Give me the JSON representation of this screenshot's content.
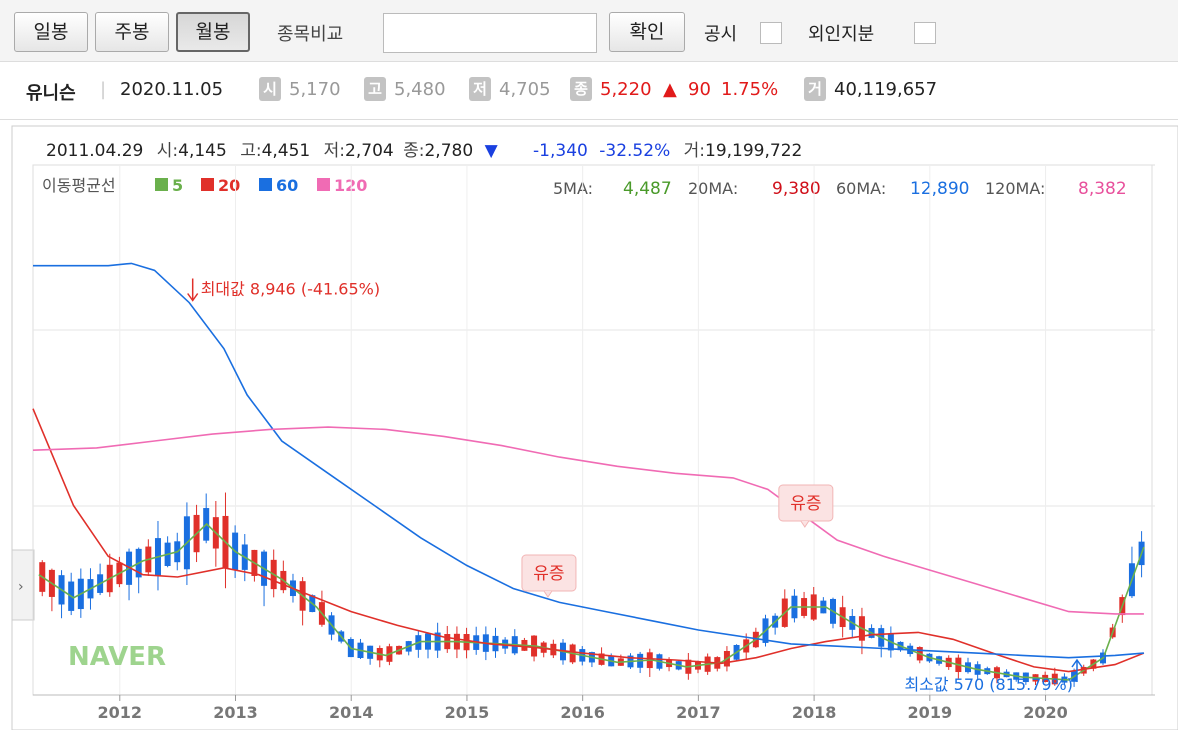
{
  "toolbar": {
    "period_buttons": [
      "일봉",
      "주봉",
      "월봉"
    ],
    "active_period": "월봉",
    "compare_label": "종목비교",
    "compare_value": "",
    "confirm_label": "확인",
    "disclosure_label": "공시",
    "foreign_label": "외인지분"
  },
  "stock": {
    "name": "유니슨",
    "date": "2020.11.05",
    "open_badge": "시",
    "open": "5,170",
    "high_badge": "고",
    "high": "5,480",
    "low_badge": "저",
    "low": "4,705",
    "close_badge": "종",
    "close": "5,220",
    "change_arrow": "▲",
    "change": "90",
    "change_pct": "1.75%",
    "volume_badge": "거",
    "volume": "40,119,657"
  },
  "hover_info": {
    "date": "2011.04.29",
    "open_label": "시:",
    "open": "4,145",
    "high_label": "고:",
    "high": "4,451",
    "low_label": "저:",
    "low": "2,704",
    "close_label": "종:",
    "close": "2,780",
    "arrow": "▼",
    "change": "-1,340",
    "change_pct": "-32.52%",
    "volume_label": "거:",
    "volume": "19,199,722"
  },
  "legend": {
    "title": "이동평균선",
    "items": [
      {
        "label": "5",
        "color": "#6ab04c"
      },
      {
        "label": "20",
        "color": "#e0302a"
      },
      {
        "label": "60",
        "color": "#1a6fe0"
      },
      {
        "label": "120",
        "color": "#f06bb4"
      }
    ],
    "ma_values": [
      {
        "label": "5MA:",
        "value": "4,487",
        "color": "#4a9a2a"
      },
      {
        "label": "20MA:",
        "value": "9,380",
        "color": "#d0101a"
      },
      {
        "label": "60MA:",
        "value": "12,890",
        "color": "#1a6fe0"
      },
      {
        "label": "120MA:",
        "value": "8,382",
        "color": "#e8509c"
      }
    ]
  },
  "watermark": "NAVER",
  "colors": {
    "up": "#e0302a",
    "down": "#1a6fe0"
  },
  "chart_data": {
    "type": "candlestick",
    "x_ticks": [
      "2012",
      "2013",
      "2014",
      "2015",
      "2016",
      "2017",
      "2018",
      "2019",
      "2020"
    ],
    "x_range": [
      2011.25,
      2020.92
    ],
    "y_range_pixel_scale": "linear",
    "series": [
      {
        "name": "5",
        "color": "#6ab04c",
        "points": [
          [
            2011.3,
            3000
          ],
          [
            2011.6,
            2500
          ],
          [
            2011.9,
            2900
          ],
          [
            2012.2,
            3300
          ],
          [
            2012.5,
            3500
          ],
          [
            2012.75,
            4100
          ],
          [
            2013.0,
            3500
          ],
          [
            2013.4,
            2900
          ],
          [
            2013.7,
            2300
          ],
          [
            2014.0,
            1400
          ],
          [
            2014.3,
            1250
          ],
          [
            2014.6,
            1550
          ],
          [
            2014.9,
            1550
          ],
          [
            2015.3,
            1500
          ],
          [
            2015.6,
            1450
          ],
          [
            2015.9,
            1300
          ],
          [
            2016.3,
            1100
          ],
          [
            2016.6,
            1150
          ],
          [
            2016.9,
            1000
          ],
          [
            2017.2,
            1100
          ],
          [
            2017.5,
            1600
          ],
          [
            2017.8,
            2300
          ],
          [
            2018.1,
            2300
          ],
          [
            2018.4,
            1850
          ],
          [
            2018.7,
            1500
          ],
          [
            2019.0,
            1200
          ],
          [
            2019.4,
            950
          ],
          [
            2019.8,
            780
          ],
          [
            2020.2,
            720
          ],
          [
            2020.5,
            1200
          ],
          [
            2020.85,
            3600
          ]
        ]
      },
      {
        "name": "20",
        "color": "#e0302a",
        "points": [
          [
            2011.25,
            6600
          ],
          [
            2011.6,
            4500
          ],
          [
            2011.9,
            3400
          ],
          [
            2012.2,
            3000
          ],
          [
            2012.5,
            2950
          ],
          [
            2012.9,
            3150
          ],
          [
            2013.2,
            3000
          ],
          [
            2013.6,
            2600
          ],
          [
            2014.0,
            2200
          ],
          [
            2014.4,
            1900
          ],
          [
            2014.8,
            1650
          ],
          [
            2015.2,
            1500
          ],
          [
            2015.6,
            1420
          ],
          [
            2016.0,
            1300
          ],
          [
            2016.4,
            1200
          ],
          [
            2016.8,
            1150
          ],
          [
            2017.2,
            1080
          ],
          [
            2017.5,
            1200
          ],
          [
            2017.8,
            1400
          ],
          [
            2018.1,
            1550
          ],
          [
            2018.5,
            1700
          ],
          [
            2018.9,
            1750
          ],
          [
            2019.2,
            1600
          ],
          [
            2019.6,
            1250
          ],
          [
            2019.9,
            1000
          ],
          [
            2020.2,
            900
          ],
          [
            2020.6,
            1050
          ],
          [
            2020.85,
            1300
          ]
        ]
      },
      {
        "name": "60",
        "color": "#1a6fe0",
        "points": [
          [
            2011.25,
            9700
          ],
          [
            2011.6,
            9700
          ],
          [
            2011.9,
            9700
          ],
          [
            2012.1,
            9750
          ],
          [
            2012.3,
            9600
          ],
          [
            2012.6,
            8900
          ],
          [
            2012.9,
            7900
          ],
          [
            2013.1,
            6900
          ],
          [
            2013.4,
            5900
          ],
          [
            2013.8,
            5200
          ],
          [
            2014.2,
            4500
          ],
          [
            2014.6,
            3800
          ],
          [
            2015.0,
            3200
          ],
          [
            2015.4,
            2700
          ],
          [
            2015.8,
            2400
          ],
          [
            2016.2,
            2200
          ],
          [
            2016.6,
            2000
          ],
          [
            2017.0,
            1800
          ],
          [
            2017.4,
            1650
          ],
          [
            2017.8,
            1500
          ],
          [
            2018.2,
            1450
          ],
          [
            2018.6,
            1400
          ],
          [
            2019.0,
            1350
          ],
          [
            2019.4,
            1300
          ],
          [
            2019.8,
            1250
          ],
          [
            2020.2,
            1200
          ],
          [
            2020.6,
            1250
          ],
          [
            2020.85,
            1300
          ]
        ]
      },
      {
        "name": "120",
        "color": "#f06bb4",
        "points": [
          [
            2011.25,
            5700
          ],
          [
            2011.8,
            5750
          ],
          [
            2012.3,
            5900
          ],
          [
            2012.8,
            6050
          ],
          [
            2013.3,
            6150
          ],
          [
            2013.8,
            6200
          ],
          [
            2014.3,
            6150
          ],
          [
            2014.8,
            6000
          ],
          [
            2015.3,
            5800
          ],
          [
            2015.8,
            5550
          ],
          [
            2016.3,
            5350
          ],
          [
            2016.8,
            5200
          ],
          [
            2017.3,
            5100
          ],
          [
            2017.6,
            4850
          ],
          [
            2017.9,
            4300
          ],
          [
            2018.2,
            3750
          ],
          [
            2018.6,
            3400
          ],
          [
            2019.0,
            3100
          ],
          [
            2019.4,
            2800
          ],
          [
            2019.8,
            2500
          ],
          [
            2020.2,
            2200
          ],
          [
            2020.6,
            2150
          ],
          [
            2020.85,
            2150
          ]
        ]
      }
    ],
    "annotations": [
      {
        "text": "최대값 8,946 (-41.65%)",
        "x": 2012.63,
        "y": 8946
      },
      {
        "text": "최소값 570 (815.79%)",
        "x": 2020.22,
        "y": 570
      },
      {
        "text": "유증",
        "x": 2015.7,
        "y": 1600
      },
      {
        "text": "유증",
        "x": 2017.92,
        "y": 2900
      }
    ]
  }
}
